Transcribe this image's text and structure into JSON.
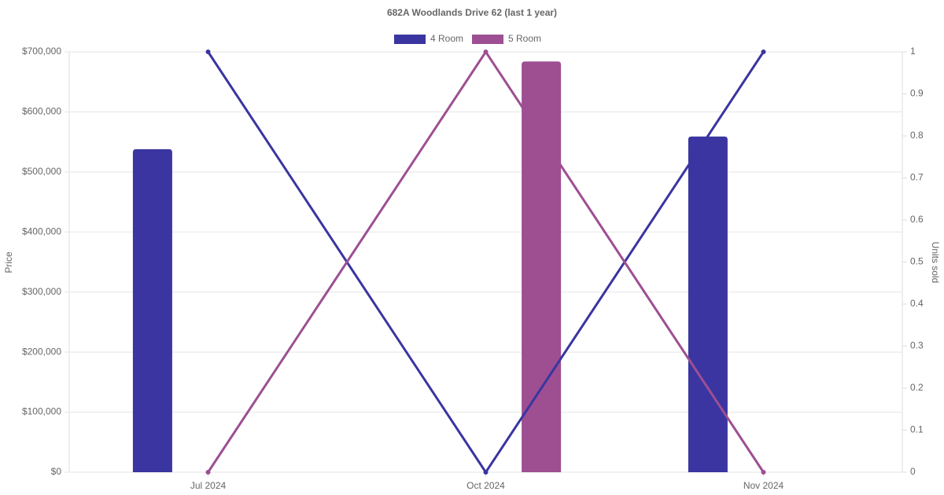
{
  "chart_data": {
    "type": "bar",
    "title": "682A Woodlands Drive 62 (last 1 year)",
    "categories": [
      "Jul 2024",
      "Oct 2024",
      "Nov 2024"
    ],
    "series": [
      {
        "name": "4 Room",
        "color": "#3a35a0",
        "values": [
          538000,
          null,
          559000
        ],
        "line_values": [
          1,
          0,
          1
        ],
        "line_axis": "y2"
      },
      {
        "name": "5 Room",
        "color": "#9d4f92",
        "values": [
          null,
          684000,
          null
        ],
        "line_values": [
          0,
          1,
          0
        ],
        "line_axis": "y2"
      }
    ],
    "ylabel": "Price",
    "y2label": "Units sold",
    "ylim": [
      0,
      700000
    ],
    "yticks": [
      {
        "value": 0,
        "label": "$0"
      },
      {
        "value": 100000,
        "label": "$100,000"
      },
      {
        "value": 200000,
        "label": "$200,000"
      },
      {
        "value": 300000,
        "label": "$300,000"
      },
      {
        "value": 400000,
        "label": "$400,000"
      },
      {
        "value": 500000,
        "label": "$500,000"
      },
      {
        "value": 600000,
        "label": "$600,000"
      },
      {
        "value": 700000,
        "label": "$700,000"
      }
    ],
    "y2lim": [
      0,
      1
    ],
    "y2ticks": [
      0,
      0.1,
      0.2,
      0.3,
      0.4,
      0.5,
      0.6,
      0.7,
      0.8,
      0.9,
      1
    ],
    "grid": true,
    "legend": "top"
  }
}
